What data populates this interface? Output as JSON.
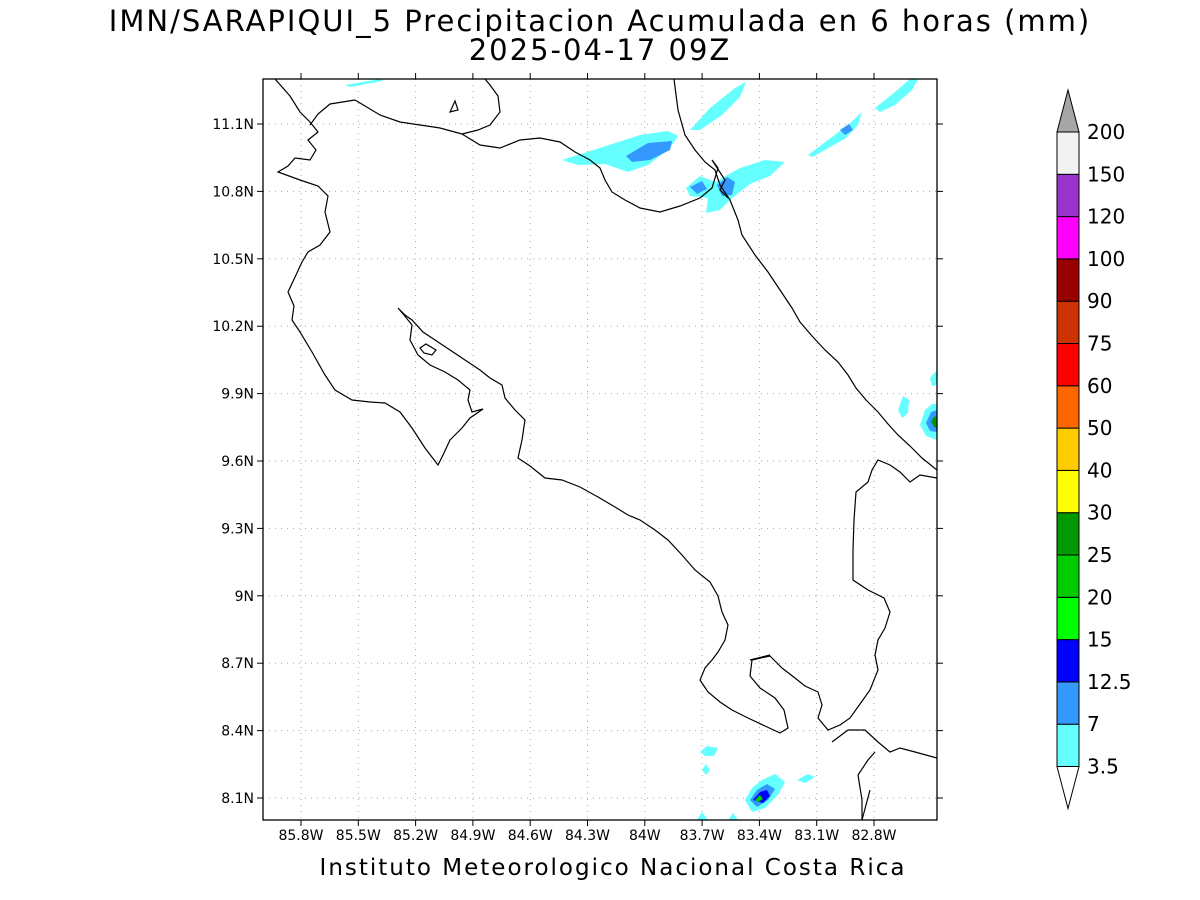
{
  "header": {
    "title_line1": "IMN/SARAPIQUI_5 Precipitacion Acumulada en 6 horas (mm)",
    "title_line2": "2025-04-17 09Z"
  },
  "footer": {
    "credit": "Instituto Meteorologico Nacional Costa Rica"
  },
  "map": {
    "lat_ticks": [
      "11.1N",
      "10.8N",
      "10.5N",
      "10.2N",
      "9.9N",
      "9.6N",
      "9.3N",
      "9N",
      "8.7N",
      "8.4N",
      "8.1N"
    ],
    "lon_ticks": [
      "85.8W",
      "85.5W",
      "85.2W",
      "84.9W",
      "84.6W",
      "84.3W",
      "84W",
      "83.7W",
      "83.4W",
      "83.1W",
      "82.8W"
    ],
    "gridlines": true
  },
  "legend": {
    "labels": [
      "3.5",
      "7",
      "12.5",
      "15",
      "20",
      "25",
      "30",
      "40",
      "50",
      "60",
      "75",
      "90",
      "100",
      "120",
      "150",
      "200"
    ],
    "colors": [
      "#ffffff",
      "#66ffff",
      "#3399ff",
      "#0000ff",
      "#00ff00",
      "#00cc00",
      "#009900",
      "#ffff00",
      "#ffcc00",
      "#ff6600",
      "#ff0000",
      "#cc3300",
      "#990000",
      "#ff00ff",
      "#9933cc",
      "#f2f2f2",
      "#a6a6a6"
    ]
  }
}
